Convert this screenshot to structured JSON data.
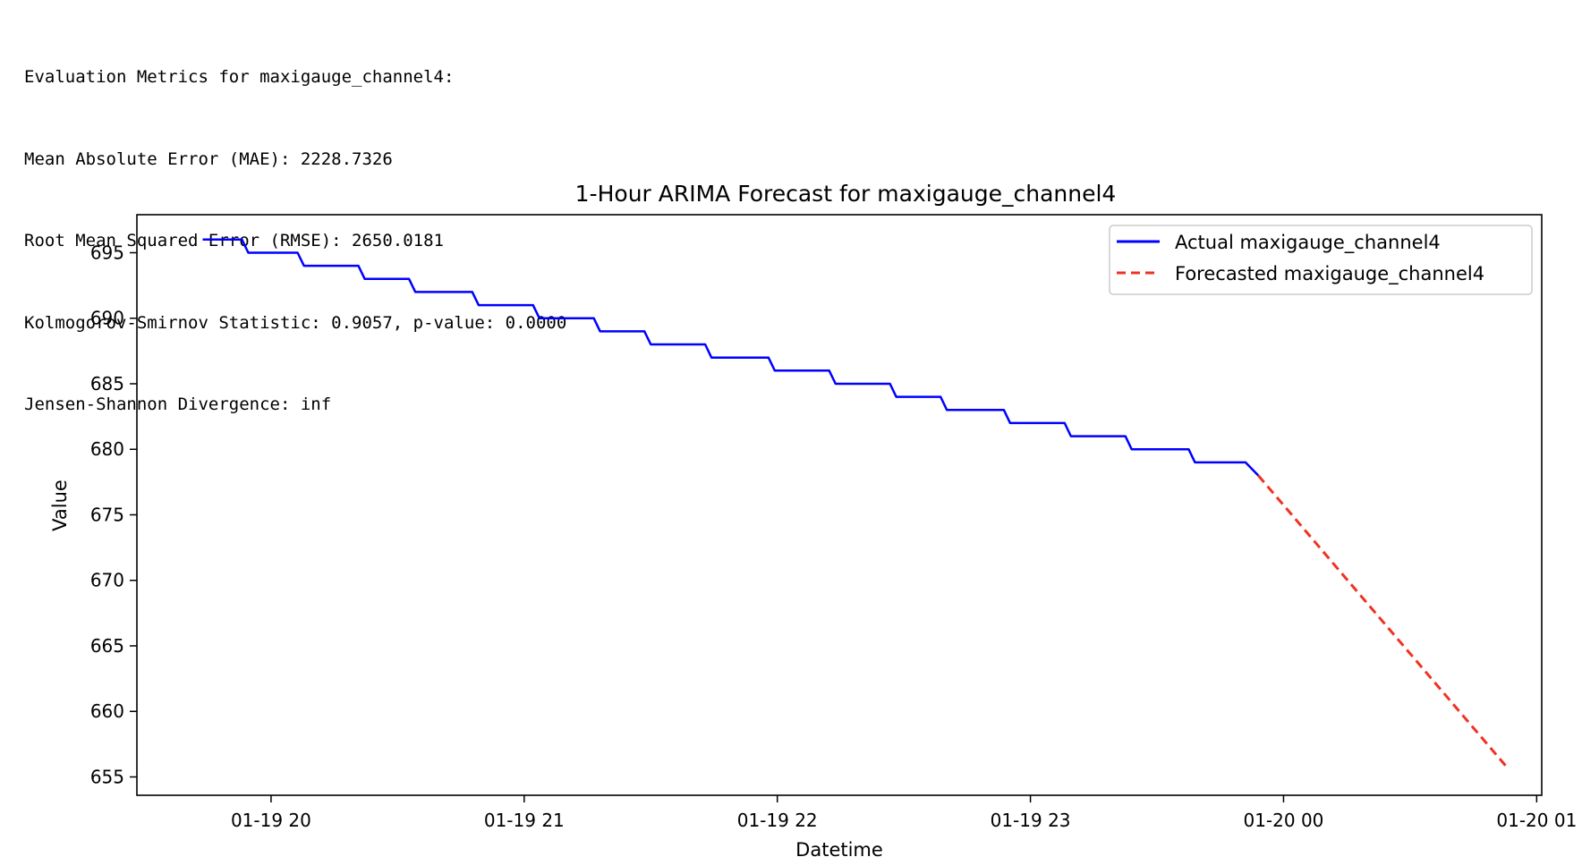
{
  "metrics": {
    "lines": [
      "Evaluation Metrics for maxigauge_channel4:",
      "Mean Absolute Error (MAE): 2228.7326",
      "Root Mean Squared Error (RMSE): 2650.0181",
      "Kolmogorov-Smirnov Statistic: 0.9057, p-value: 0.0000",
      "Jensen-Shannon Divergence: inf"
    ]
  },
  "chart_data": {
    "type": "line",
    "title": "1-Hour ARIMA Forecast for maxigauge_channel4",
    "xlabel": "Datetime",
    "ylabel": "Value",
    "x_unit": "hours since 01-19 20:00",
    "xlim": [
      -0.53,
      5.02
    ],
    "ylim": [
      653.6,
      697.9
    ],
    "xticks": [
      {
        "value": 0,
        "label": "01-19 20"
      },
      {
        "value": 1,
        "label": "01-19 21"
      },
      {
        "value": 2,
        "label": "01-19 22"
      },
      {
        "value": 3,
        "label": "01-19 23"
      },
      {
        "value": 4,
        "label": "01-20 00"
      },
      {
        "value": 5,
        "label": "01-20 01"
      }
    ],
    "yticks": [
      655,
      660,
      665,
      670,
      675,
      680,
      685,
      690,
      695
    ],
    "legend_position": "top-right",
    "series": [
      {
        "name": "Actual maxigauge_channel4",
        "color": "#0000ff",
        "style": "solid",
        "steps": [
          {
            "from": -0.27,
            "value": 696
          },
          {
            "from": -0.09,
            "value": 695
          },
          {
            "from": 0.13,
            "value": 694
          },
          {
            "from": 0.37,
            "value": 693
          },
          {
            "from": 0.57,
            "value": 692
          },
          {
            "from": 0.82,
            "value": 691
          },
          {
            "from": 1.06,
            "value": 690
          },
          {
            "from": 1.3,
            "value": 689
          },
          {
            "from": 1.5,
            "value": 688
          },
          {
            "from": 1.74,
            "value": 687
          },
          {
            "from": 1.99,
            "value": 686
          },
          {
            "from": 2.23,
            "value": 685
          },
          {
            "from": 2.47,
            "value": 684
          },
          {
            "from": 2.67,
            "value": 683
          },
          {
            "from": 2.92,
            "value": 682
          },
          {
            "from": 3.16,
            "value": 681
          },
          {
            "from": 3.4,
            "value": 680
          },
          {
            "from": 3.65,
            "value": 679
          }
        ],
        "end": {
          "x": 3.9,
          "value": 678
        }
      },
      {
        "name": "Forecasted maxigauge_channel4",
        "color": "#ee3322",
        "style": "dashed",
        "x": [
          3.9,
          4.88
        ],
        "values": [
          678,
          655.8
        ]
      }
    ]
  }
}
